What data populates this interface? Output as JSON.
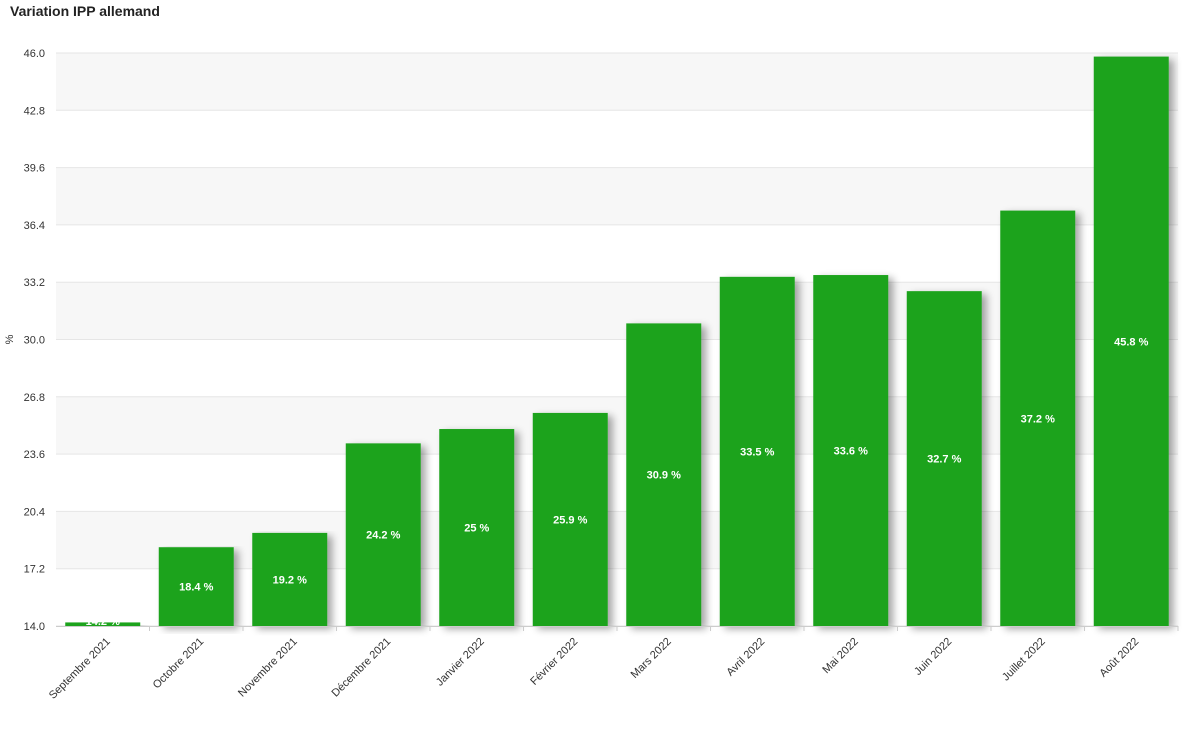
{
  "chart_data": {
    "type": "bar",
    "title": "Variation IPP allemand",
    "ylabel": "%",
    "xlabel": "",
    "ylim": [
      14.0,
      46.0
    ],
    "yticks": [
      "14.0",
      "17.2",
      "20.4",
      "23.6",
      "26.8",
      "30.0",
      "33.2",
      "36.4",
      "39.6",
      "42.8",
      "46.0"
    ],
    "grid": true,
    "legend": "none",
    "color": "#1fa31f",
    "categories": [
      "Septembre 2021",
      "Octobre 2021",
      "Novembre 2021",
      "Décembre 2021",
      "Janvier 2022",
      "Février 2022",
      "Mars 2022",
      "Avril 2022",
      "Mai 2022",
      "Juin 2022",
      "Juillet 2022",
      "Août 2022"
    ],
    "values": [
      14.2,
      18.4,
      19.2,
      24.2,
      25,
      25.9,
      30.9,
      33.5,
      33.6,
      32.7,
      37.2,
      45.8
    ],
    "labels": [
      "14.2 %",
      "18.4 %",
      "19.2 %",
      "24.2 %",
      "25 %",
      "25.9 %",
      "30.9 %",
      "33.5 %",
      "33.6 %",
      "32.7 %",
      "37.2 %",
      "45.8 %"
    ]
  }
}
